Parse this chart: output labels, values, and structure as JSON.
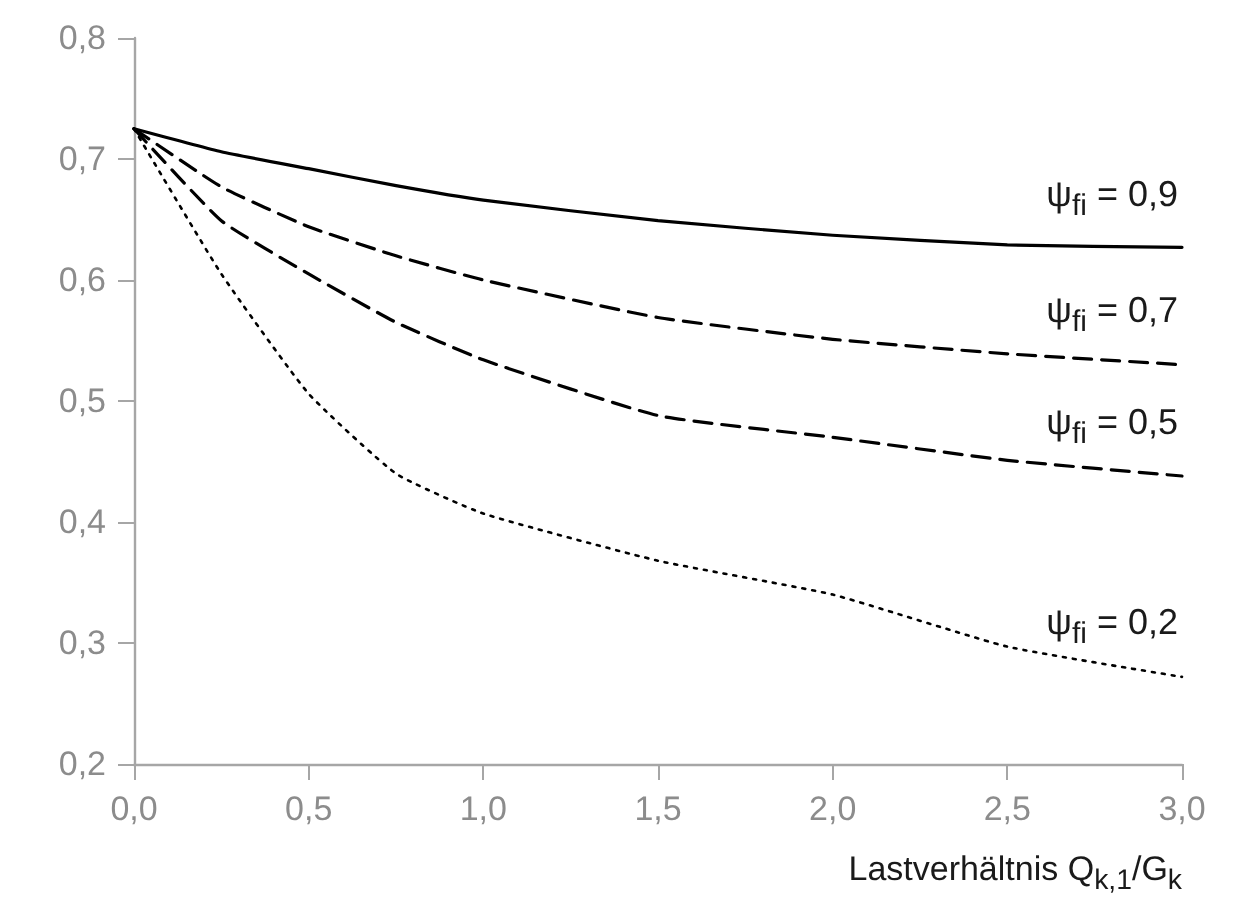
{
  "chart_data": {
    "type": "line",
    "xlabel": "Lastverhältnis Q$_{k,1}$/G$_{k}$",
    "x": [
      0,
      0.25,
      0.5,
      0.75,
      1.0,
      1.5,
      2.0,
      2.5,
      3.0
    ],
    "series": [
      {
        "name": "ψ$_{fi}$ = 0,9",
        "color": "#000000",
        "line_style": "solid",
        "values": [
          0.725,
          0.706,
          0.692,
          0.678,
          0.666,
          0.649,
          0.637,
          0.629,
          0.627
        ]
      },
      {
        "name": "ψ$_{fi}$ = 0,7",
        "color": "#000000",
        "line_style": "dashed",
        "values": [
          0.725,
          0.677,
          0.644,
          0.62,
          0.6,
          0.569,
          0.551,
          0.539,
          0.53
        ]
      },
      {
        "name": "ψ$_{fi}$ = 0,5",
        "color": "#000000",
        "line_style": "dashed",
        "values": [
          0.725,
          0.649,
          0.605,
          0.565,
          0.534,
          0.488,
          0.47,
          0.451,
          0.438
        ]
      },
      {
        "name": "ψ$_{fi}$ = 0,2",
        "color": "#000000",
        "line_style": "dotted",
        "values": [
          0.725,
          0.605,
          0.506,
          0.44,
          0.407,
          0.368,
          0.34,
          0.297,
          0.272
        ]
      }
    ],
    "xlim": [
      0,
      3
    ],
    "xticks": [
      {
        "value": 0,
        "label": "0,0"
      },
      {
        "value": 0.5,
        "label": "0,5"
      },
      {
        "value": 1,
        "label": "1,0"
      },
      {
        "value": 1.5,
        "label": "1,5"
      },
      {
        "value": 2,
        "label": "2,0"
      },
      {
        "value": 2.5,
        "label": "2,5"
      },
      {
        "value": 3,
        "label": "3,0"
      }
    ],
    "ylim": [
      0.2,
      0.8
    ],
    "yticks": [
      {
        "value": 0.2,
        "label": "0,2"
      },
      {
        "value": 0.3,
        "label": "0,3"
      },
      {
        "value": 0.4,
        "label": "0,4"
      },
      {
        "value": 0.5,
        "label": "0,5"
      },
      {
        "value": 0.6,
        "label": "0,6"
      },
      {
        "value": 0.7,
        "label": "0,7"
      },
      {
        "value": 0.8,
        "label": "0,8"
      }
    ],
    "grid": false,
    "legend": false,
    "marker": "none"
  }
}
